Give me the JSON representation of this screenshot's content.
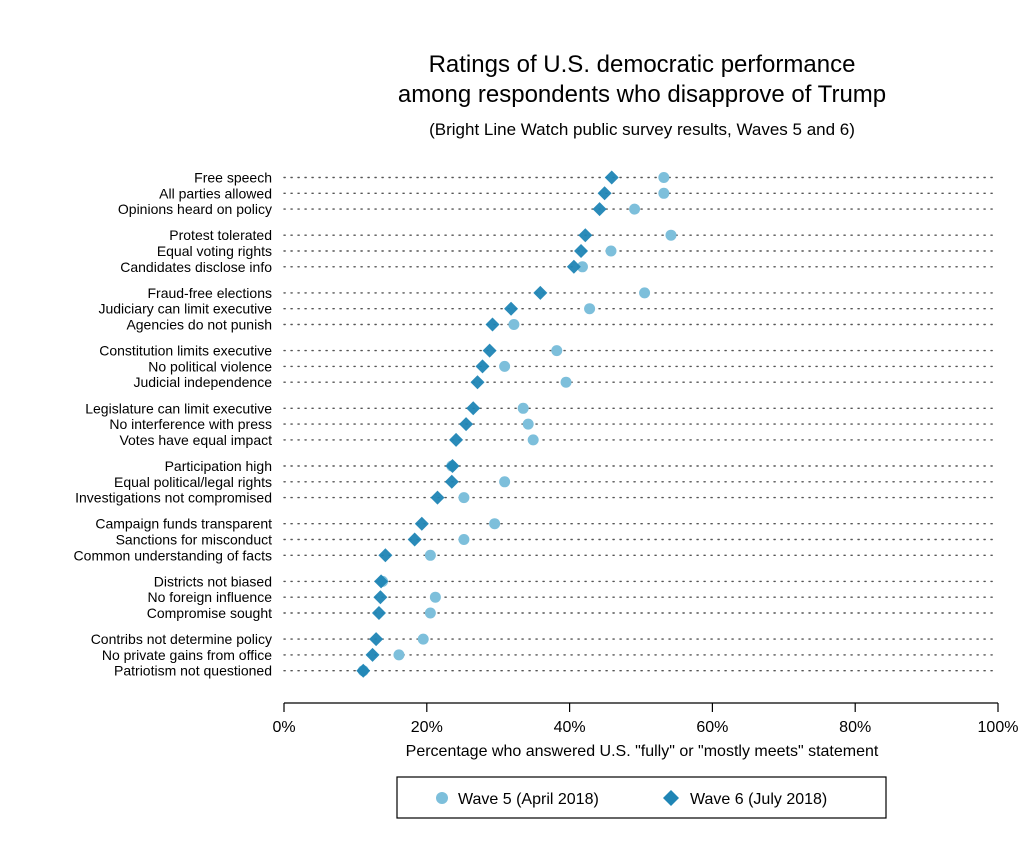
{
  "chart_data": {
    "type": "scatter",
    "title": [
      "Ratings of U.S. democratic performance",
      "among respondents who disapprove of Trump"
    ],
    "subtitle": "(Bright Line Watch public survey results, Waves 5 and 6)",
    "xlabel": "Percentage who answered U.S. \"fully\" or \"mostly meets\" statement",
    "xlim": [
      0,
      100
    ],
    "xticks": [
      "0%",
      "20%",
      "40%",
      "60%",
      "80%",
      "100%"
    ],
    "xtick_values": [
      0,
      20,
      40,
      60,
      80,
      100
    ],
    "legend_position": "bottom",
    "categories": [
      "Free speech",
      "All parties allowed",
      "Opinions heard on policy",
      "Protest tolerated",
      "Equal voting rights",
      "Candidates disclose info",
      "Fraud-free elections",
      "Judiciary can limit executive",
      "Agencies do not punish",
      "Constitution limits executive",
      "No political violence",
      "Judicial independence",
      "Legislature can limit executive",
      "No interference with press",
      "Votes have equal impact",
      "Participation high",
      "Equal political/legal rights",
      "Investigations not compromised",
      "Campaign funds transparent",
      "Sanctions for misconduct",
      "Common understanding of facts",
      "Districts not biased",
      "No foreign influence",
      "Compromise sought",
      "Contribs not determine policy",
      "No private gains from office",
      "Patriotism not questioned"
    ],
    "series": [
      {
        "name": "Wave 5 (April 2018)",
        "marker": "circle",
        "color": "#7dbfdb",
        "values": [
          53.2,
          53.2,
          49.1,
          54.2,
          45.8,
          41.8,
          50.5,
          42.8,
          32.2,
          38.2,
          30.9,
          39.5,
          33.5,
          34.2,
          34.9,
          23.5,
          30.9,
          25.2,
          29.5,
          25.2,
          20.5,
          13.8,
          21.2,
          20.5,
          19.5,
          16.1,
          11.1
        ]
      },
      {
        "name": "Wave 6 (July 2018)",
        "marker": "diamond",
        "color": "#1f85b5",
        "values": [
          45.9,
          44.9,
          44.2,
          42.2,
          41.6,
          40.6,
          35.9,
          31.8,
          29.2,
          28.8,
          27.8,
          27.1,
          26.5,
          25.5,
          24.1,
          23.6,
          23.5,
          21.5,
          19.3,
          18.3,
          14.2,
          13.6,
          13.5,
          13.3,
          12.9,
          12.4,
          11.1
        ]
      }
    ]
  },
  "colors": {
    "wave5": "#7dbfdb",
    "wave6": "#1f85b5",
    "dots": "#555555"
  }
}
